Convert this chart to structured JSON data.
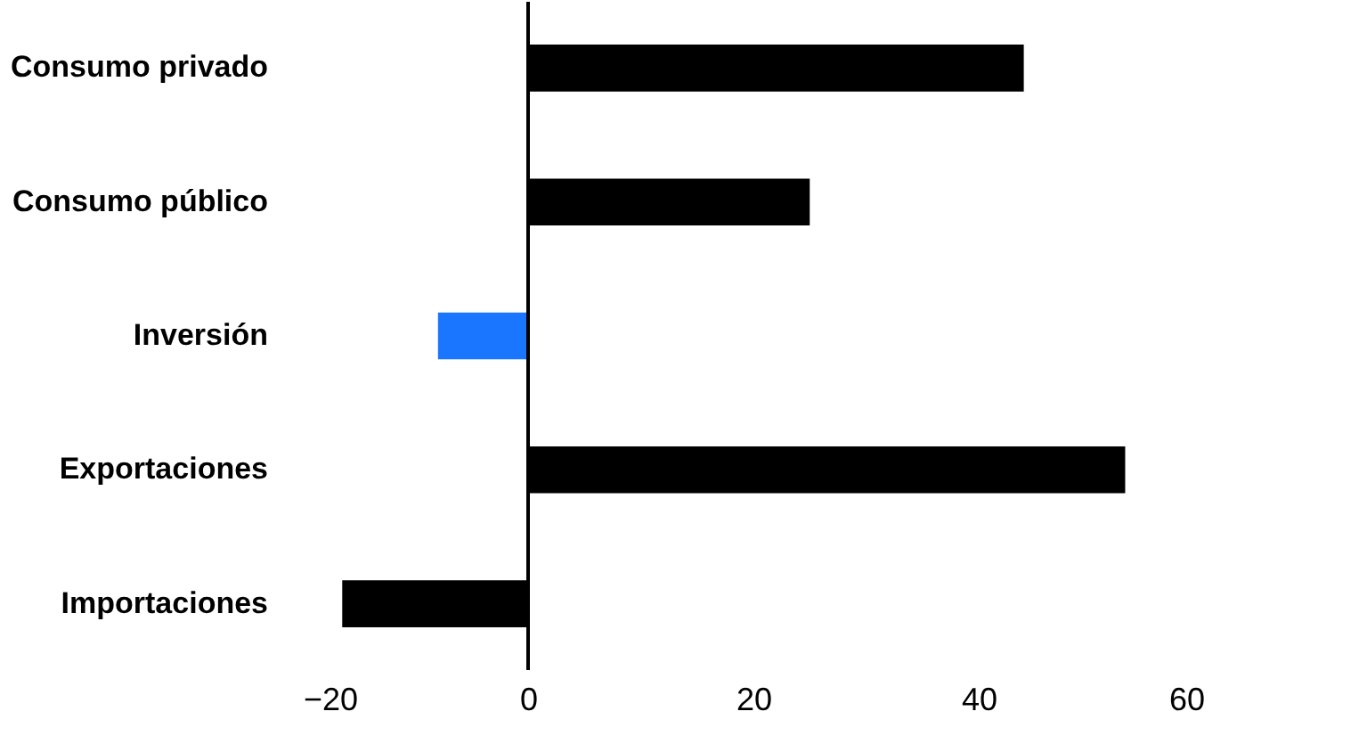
{
  "chart_data": {
    "type": "bar",
    "orientation": "horizontal",
    "categories": [
      "Consumo privado",
      "Consumo público",
      "Inversión",
      "Exportaciones",
      "Importaciones"
    ],
    "values": [
      44,
      25,
      -8,
      53,
      -16.5
    ],
    "colors": [
      "#000000",
      "#000000",
      "#1a75ff",
      "#000000",
      "#000000"
    ],
    "xlim": [
      -20,
      60
    ],
    "xticks": [
      -20,
      0,
      20,
      40,
      60
    ],
    "grid": false,
    "ref_lines": [
      {
        "axis": "x",
        "value": 0,
        "color": "#000000"
      }
    ]
  }
}
